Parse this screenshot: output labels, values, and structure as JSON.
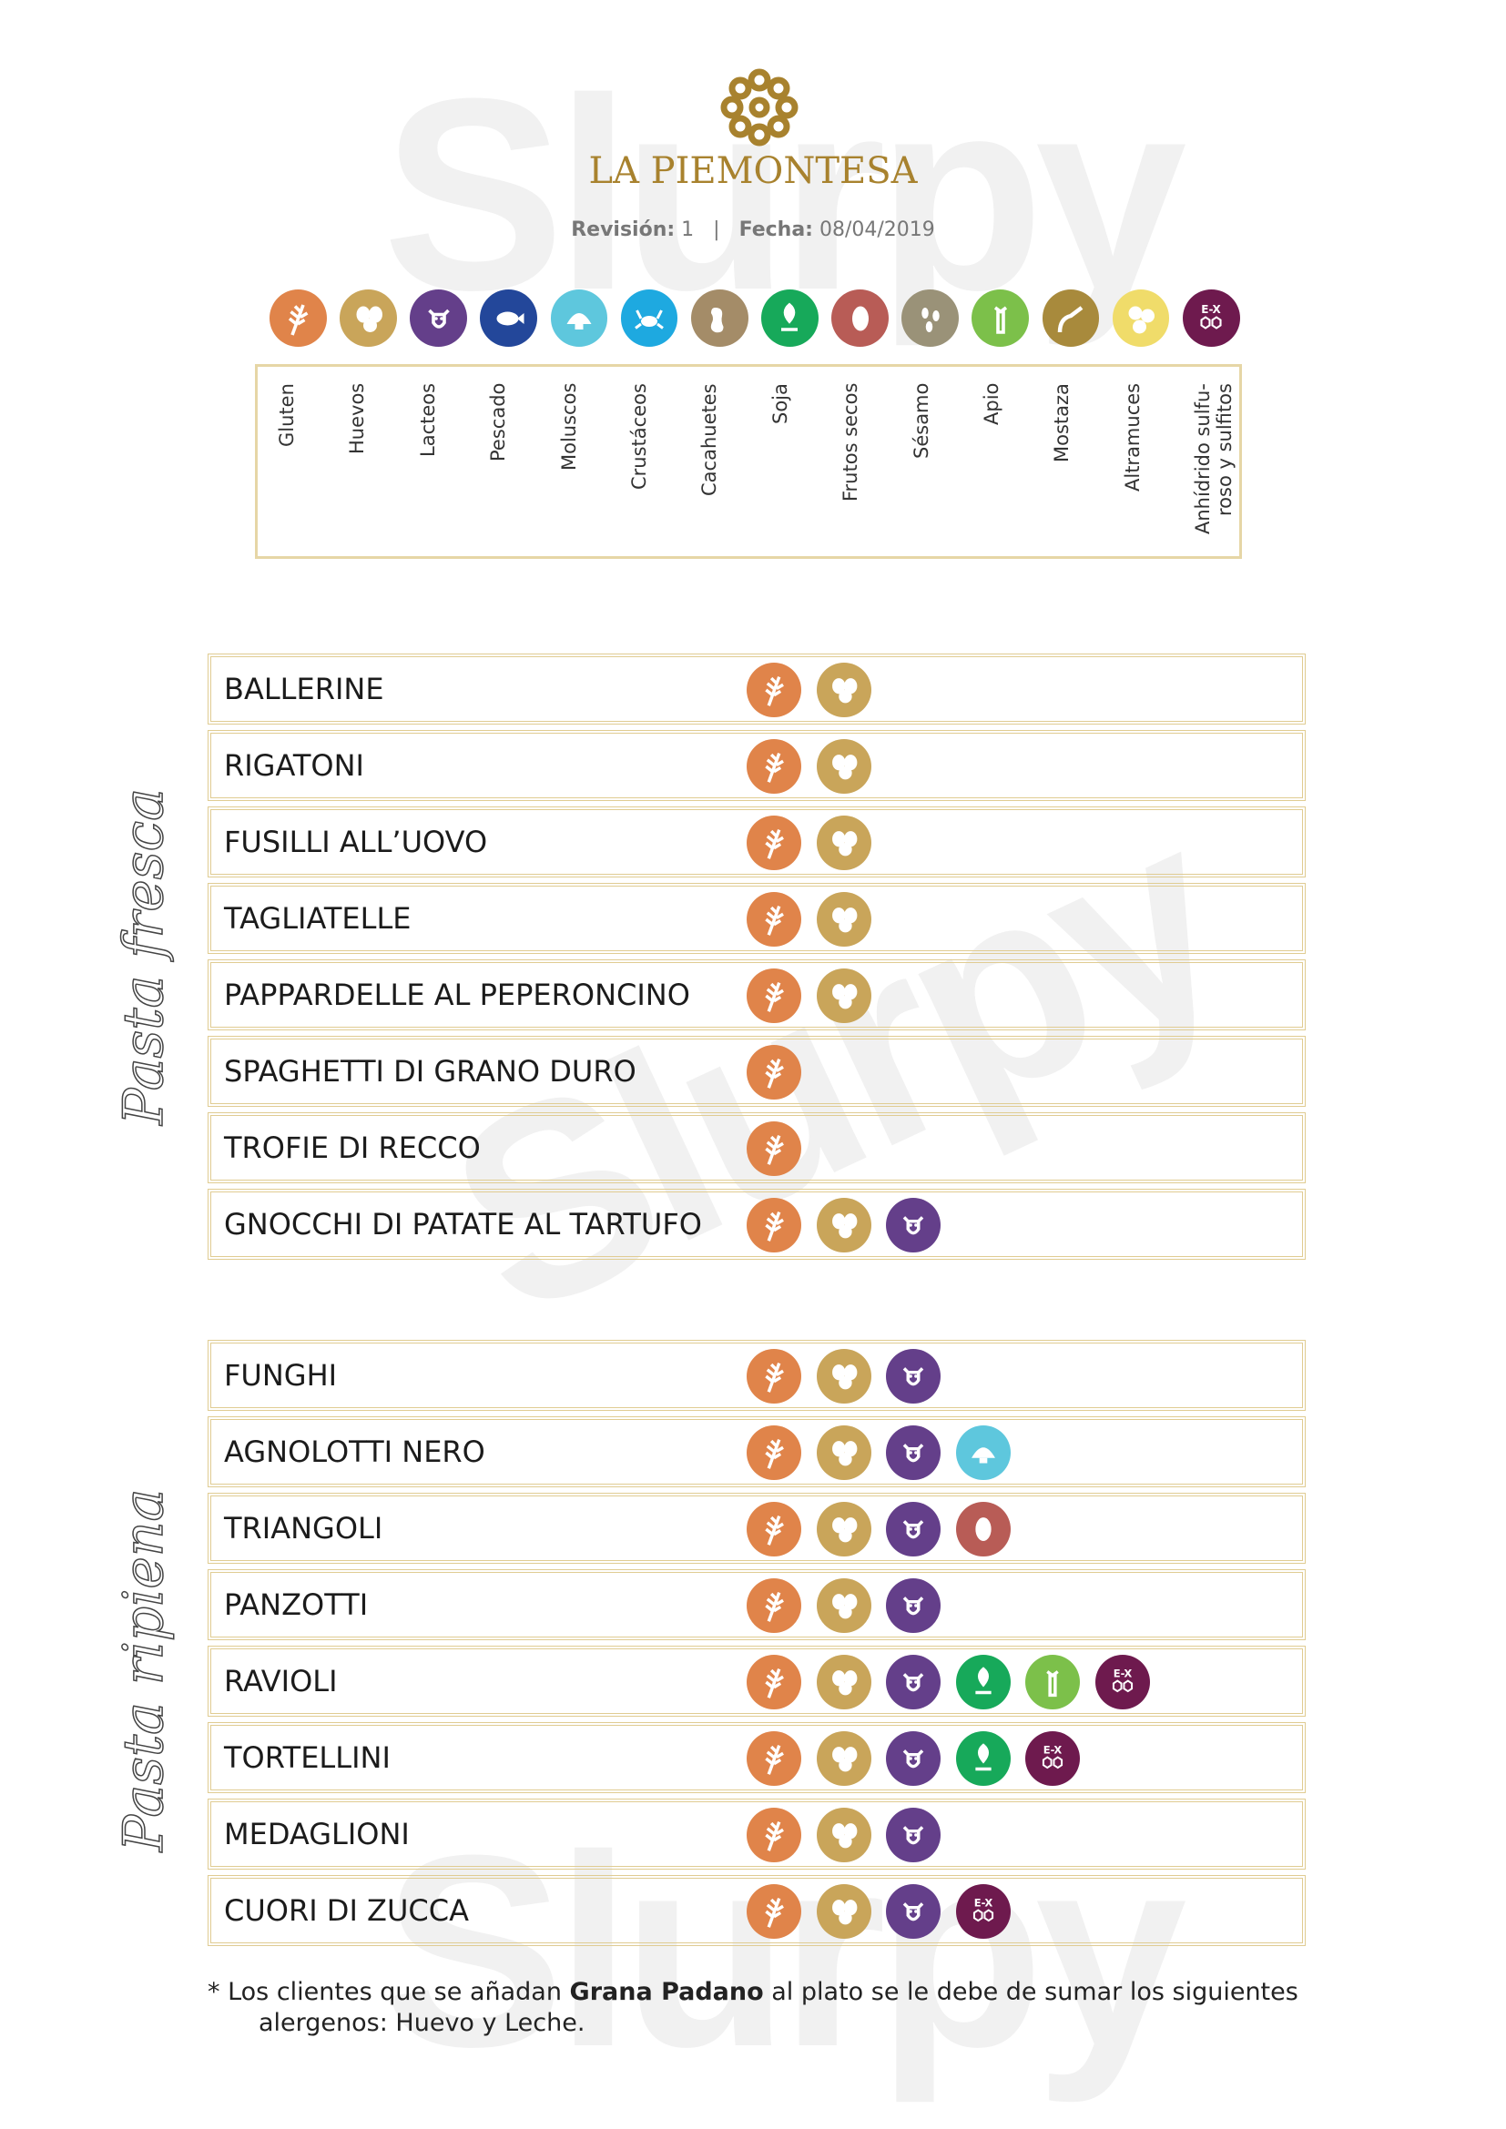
{
  "watermark": "Slurpy",
  "header": {
    "title": "LA PIEMONTESA",
    "revision_label": "Revisión:",
    "revision_value": "1",
    "separator": "|",
    "date_label": "Fecha:",
    "date_value": "08/04/2019"
  },
  "allergens": [
    {
      "key": "gluten",
      "label": "Gluten",
      "icon": "wheat-icon",
      "color": "#e0844a"
    },
    {
      "key": "huevos",
      "label": "Huevos",
      "icon": "eggs-icon",
      "color": "#c9a55a"
    },
    {
      "key": "lacteos",
      "label": "Lacteos",
      "icon": "cow-icon",
      "color": "#643f8a"
    },
    {
      "key": "pescado",
      "label": "Pescado",
      "icon": "fish-icon",
      "color": "#23479a"
    },
    {
      "key": "moluscos",
      "label": "Moluscos",
      "icon": "shell-icon",
      "color": "#5ec7dd"
    },
    {
      "key": "crustaceos",
      "label": "Crustáceos",
      "icon": "crab-icon",
      "color": "#1ea9e0"
    },
    {
      "key": "cacahuetes",
      "label": "Cacahuetes",
      "icon": "peanut-icon",
      "color": "#a48c68"
    },
    {
      "key": "soja",
      "label": "Soja",
      "icon": "soy-icon",
      "color": "#17a95a"
    },
    {
      "key": "frutos",
      "label": "Frutos secos",
      "icon": "nut-icon",
      "color": "#b85c56"
    },
    {
      "key": "sesamo",
      "label": "Sésamo",
      "icon": "sesame-icon",
      "color": "#9a9278"
    },
    {
      "key": "apio",
      "label": "Apio",
      "icon": "celery-icon",
      "color": "#7cc04a"
    },
    {
      "key": "mostaza",
      "label": "Mostaza",
      "icon": "mustard-icon",
      "color": "#a88a3c"
    },
    {
      "key": "altramuces",
      "label": "Altramuces",
      "icon": "lupin-icon",
      "color": "#f0dc6a"
    },
    {
      "key": "sulfitos",
      "label": "Anhídrido sulfu-\nroso y sulfitos",
      "icon": "sulphite-icon",
      "color": "#6e1a4e",
      "badge": "E-X"
    }
  ],
  "sections": [
    {
      "title": "Pasta fresca",
      "dishes": [
        {
          "name": "BALLERINE",
          "allergens": [
            "gluten",
            "huevos"
          ]
        },
        {
          "name": "RIGATONI",
          "allergens": [
            "gluten",
            "huevos"
          ]
        },
        {
          "name": "FUSILLI ALL’UOVO",
          "allergens": [
            "gluten",
            "huevos"
          ]
        },
        {
          "name": "TAGLIATELLE",
          "allergens": [
            "gluten",
            "huevos"
          ]
        },
        {
          "name": "PAPPARDELLE AL PEPERONCINO",
          "allergens": [
            "gluten",
            "huevos"
          ]
        },
        {
          "name": "SPAGHETTI DI GRANO DURO",
          "allergens": [
            "gluten"
          ]
        },
        {
          "name": "TROFIE DI RECCO",
          "allergens": [
            "gluten"
          ]
        },
        {
          "name": "GNOCCHI DI PATATE AL TARTUFO",
          "allergens": [
            "gluten",
            "huevos",
            "lacteos"
          ]
        }
      ]
    },
    {
      "title": "Pasta ripiena",
      "dishes": [
        {
          "name": "FUNGHI",
          "allergens": [
            "gluten",
            "huevos",
            "lacteos"
          ]
        },
        {
          "name": "AGNOLOTTI NERO",
          "allergens": [
            "gluten",
            "huevos",
            "lacteos",
            "moluscos"
          ]
        },
        {
          "name": "TRIANGOLI",
          "allergens": [
            "gluten",
            "huevos",
            "lacteos",
            "frutos"
          ]
        },
        {
          "name": "PANZOTTI",
          "allergens": [
            "gluten",
            "huevos",
            "lacteos"
          ]
        },
        {
          "name": "RAVIOLI",
          "allergens": [
            "gluten",
            "huevos",
            "lacteos",
            "soja",
            "apio",
            "sulfitos"
          ]
        },
        {
          "name": "TORTELLINI",
          "allergens": [
            "gluten",
            "huevos",
            "lacteos",
            "soja",
            "sulfitos"
          ]
        },
        {
          "name": "MEDAGLIONI",
          "allergens": [
            "gluten",
            "huevos",
            "lacteos"
          ]
        },
        {
          "name": "CUORI DI ZUCCA",
          "allergens": [
            "gluten",
            "huevos",
            "lacteos",
            "sulfitos"
          ]
        }
      ]
    }
  ],
  "footnote": {
    "prefix": "* Los clientes que se añadan ",
    "bold": "Grana Padano",
    "suffix": " al plato se le debe de sumar los siguientes",
    "line2": "alergenos: Huevo y Leche."
  }
}
